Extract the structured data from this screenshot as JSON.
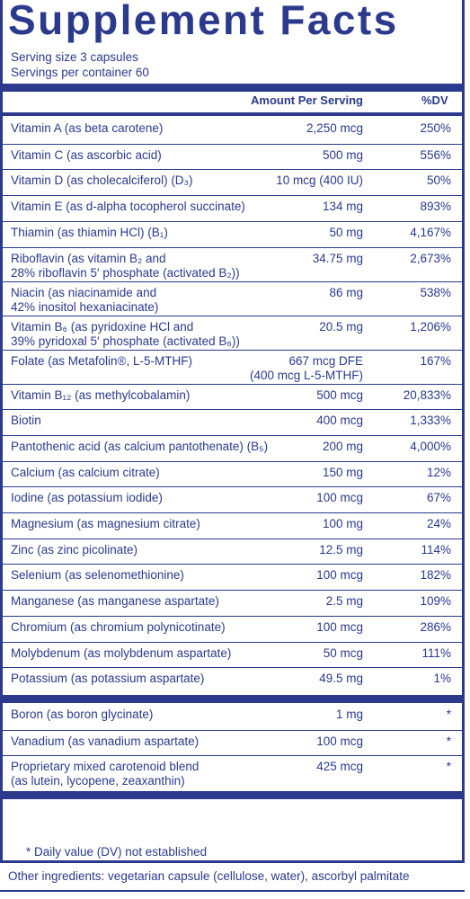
{
  "title": "Supplement Facts",
  "serving_size": "Serving size  3 capsules",
  "servings_per_container": "Servings per container  60",
  "header": {
    "amount": "Amount Per Serving",
    "dv": "%DV"
  },
  "rows_group1": [
    {
      "name": "Vitamin A (as beta carotene)",
      "amount": "2,250 mcg",
      "dv": "250%"
    },
    {
      "name": "Vitamin C (as ascorbic acid)",
      "amount": "500 mg",
      "dv": "556%"
    },
    {
      "name": "Vitamin D (as cholecalciferol) (D₃)",
      "amount": "10 mcg (400 IU)",
      "dv": "50%"
    },
    {
      "name": "Vitamin E (as d-alpha tocopherol succinate)",
      "amount": "134 mg",
      "dv": "893%"
    },
    {
      "name": "Thiamin (as thiamin HCl) (B₁)",
      "amount": "50 mg",
      "dv": "4,167%"
    },
    {
      "name": "Riboflavin (as vitamin B₂ and",
      "name2": "28% riboflavin 5′ phosphate (activated B₂))",
      "amount": "34.75 mg",
      "dv": "2,673%"
    },
    {
      "name": "Niacin (as niacinamide and",
      "name2": "42% inositol hexaniacinate)",
      "amount": "86 mg",
      "dv": "538%"
    },
    {
      "name": "Vitamin B₆ (as pyridoxine HCl and",
      "name2": "39% pyridoxal 5′ phosphate (activated B₆))",
      "amount": "20.5 mg",
      "dv": "1,206%"
    },
    {
      "name": "Folate (as Metafolin®, L-5-MTHF)",
      "amount": "667 mcg DFE",
      "amount2": "(400 mcg L-5-MTHF)",
      "dv": "167%"
    },
    {
      "name": "Vitamin B₁₂ (as methylcobalamin)",
      "amount": "500 mcg",
      "dv": "20,833%"
    },
    {
      "name": "Biotin",
      "amount": "400 mcg",
      "dv": "1,333%"
    },
    {
      "name": "Pantothenic acid (as calcium pantothenate) (B₅)",
      "amount": "200 mg",
      "dv": "4,000%"
    },
    {
      "name": "Calcium (as calcium citrate)",
      "amount": "150 mg",
      "dv": "12%"
    },
    {
      "name": "Iodine (as potassium iodide)",
      "amount": "100 mcg",
      "dv": "67%"
    },
    {
      "name": "Magnesium (as magnesium citrate)",
      "amount": "100 mg",
      "dv": "24%"
    },
    {
      "name": "Zinc (as zinc picolinate)",
      "amount": "12.5 mg",
      "dv": "114%"
    },
    {
      "name": "Selenium (as selenomethionine)",
      "amount": "100 mcg",
      "dv": "182%"
    },
    {
      "name": "Manganese (as manganese aspartate)",
      "amount": "2.5 mg",
      "dv": "109%"
    },
    {
      "name": "Chromium (as chromium polynicotinate)",
      "amount": "100 mcg",
      "dv": "286%"
    },
    {
      "name": "Molybdenum (as molybdenum aspartate)",
      "amount": "50 mcg",
      "dv": "111%"
    },
    {
      "name": "Potassium (as potassium aspartate)",
      "amount": "49.5 mg",
      "dv": "1%"
    }
  ],
  "rows_group2": [
    {
      "name": "Boron (as boron glycinate)",
      "amount": "1 mg",
      "dv": "*"
    },
    {
      "name": "Vanadium (as vanadium aspartate)",
      "amount": "100 mcg",
      "dv": "*"
    },
    {
      "name": "Proprietary mixed carotenoid blend",
      "name2": "(as lutein, lycopene, zeaxanthin)",
      "amount": "425 mcg",
      "dv": "*"
    }
  ],
  "footnote": "*  Daily value (DV) not established",
  "other_ingredients": "Other ingredients: vegetarian capsule (cellulose, water), ascorbyl palmitate",
  "colors": {
    "ink": "#2b3a8c"
  }
}
